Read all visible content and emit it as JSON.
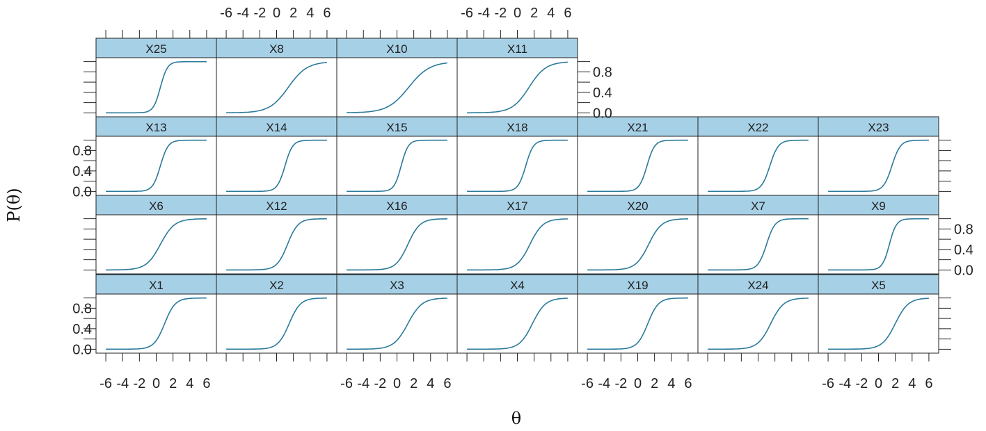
{
  "chart_data": {
    "type": "line",
    "title": "",
    "xlabel": "θ",
    "ylabel": "P(θ)",
    "xlim": [
      -7,
      7
    ],
    "ylim": [
      -0.05,
      1.05
    ],
    "x_ticks": [
      -6,
      -4,
      -2,
      0,
      2,
      4,
      6
    ],
    "x_tick_labels": [
      "-6",
      "-4",
      "-2",
      "0",
      "2",
      "4",
      "6"
    ],
    "y_ticks": [
      0.0,
      0.4,
      0.8
    ],
    "y_tick_labels": [
      "0.0",
      "0.4",
      "0.8"
    ],
    "line_color": "#2a7a9a",
    "strip_color": "#a6d0e6",
    "curve_x_range": [
      -6,
      6
    ],
    "rows": [
      {
        "panels": [
          {
            "label": "X25",
            "difficulty": 0.5,
            "discrimination": 2.4
          },
          {
            "label": "X8",
            "difficulty": 1.4,
            "discrimination": 0.9
          },
          {
            "label": "X10",
            "difficulty": 1.4,
            "discrimination": 0.8
          },
          {
            "label": "X11",
            "difficulty": 1.4,
            "discrimination": 1.0
          }
        ]
      },
      {
        "panels": [
          {
            "label": "X13",
            "difficulty": 0.5,
            "discrimination": 2.2
          },
          {
            "label": "X14",
            "difficulty": 1.0,
            "discrimination": 2.2
          },
          {
            "label": "X15",
            "difficulty": 0.5,
            "discrimination": 2.4
          },
          {
            "label": "X18",
            "difficulty": 1.0,
            "discrimination": 2.2
          },
          {
            "label": "X21",
            "difficulty": 1.1,
            "discrimination": 2.2
          },
          {
            "label": "X22",
            "difficulty": 1.4,
            "discrimination": 2.0
          },
          {
            "label": "X23",
            "difficulty": 1.6,
            "discrimination": 2.0
          }
        ]
      },
      {
        "panels": [
          {
            "label": "X6",
            "difficulty": 0.5,
            "discrimination": 1.2
          },
          {
            "label": "X12",
            "difficulty": 1.3,
            "discrimination": 1.6
          },
          {
            "label": "X16",
            "difficulty": 1.3,
            "discrimination": 1.4
          },
          {
            "label": "X17",
            "difficulty": 1.5,
            "discrimination": 1.3
          },
          {
            "label": "X20",
            "difficulty": 1.3,
            "discrimination": 1.3
          },
          {
            "label": "X7",
            "difficulty": 1.0,
            "discrimination": 2.0
          },
          {
            "label": "X9",
            "difficulty": 1.3,
            "discrimination": 2.4
          }
        ]
      },
      {
        "panels": [
          {
            "label": "X1",
            "difficulty": 1.0,
            "discrimination": 1.6
          },
          {
            "label": "X2",
            "difficulty": 1.5,
            "discrimination": 1.5
          },
          {
            "label": "X3",
            "difficulty": 1.3,
            "discrimination": 1.2
          },
          {
            "label": "X4",
            "difficulty": 1.8,
            "discrimination": 1.3
          },
          {
            "label": "X19",
            "difficulty": 1.2,
            "discrimination": 1.6
          },
          {
            "label": "X24",
            "difficulty": 1.5,
            "discrimination": 1.3
          },
          {
            "label": "X5",
            "difficulty": 2.0,
            "discrimination": 1.3
          }
        ]
      }
    ]
  }
}
